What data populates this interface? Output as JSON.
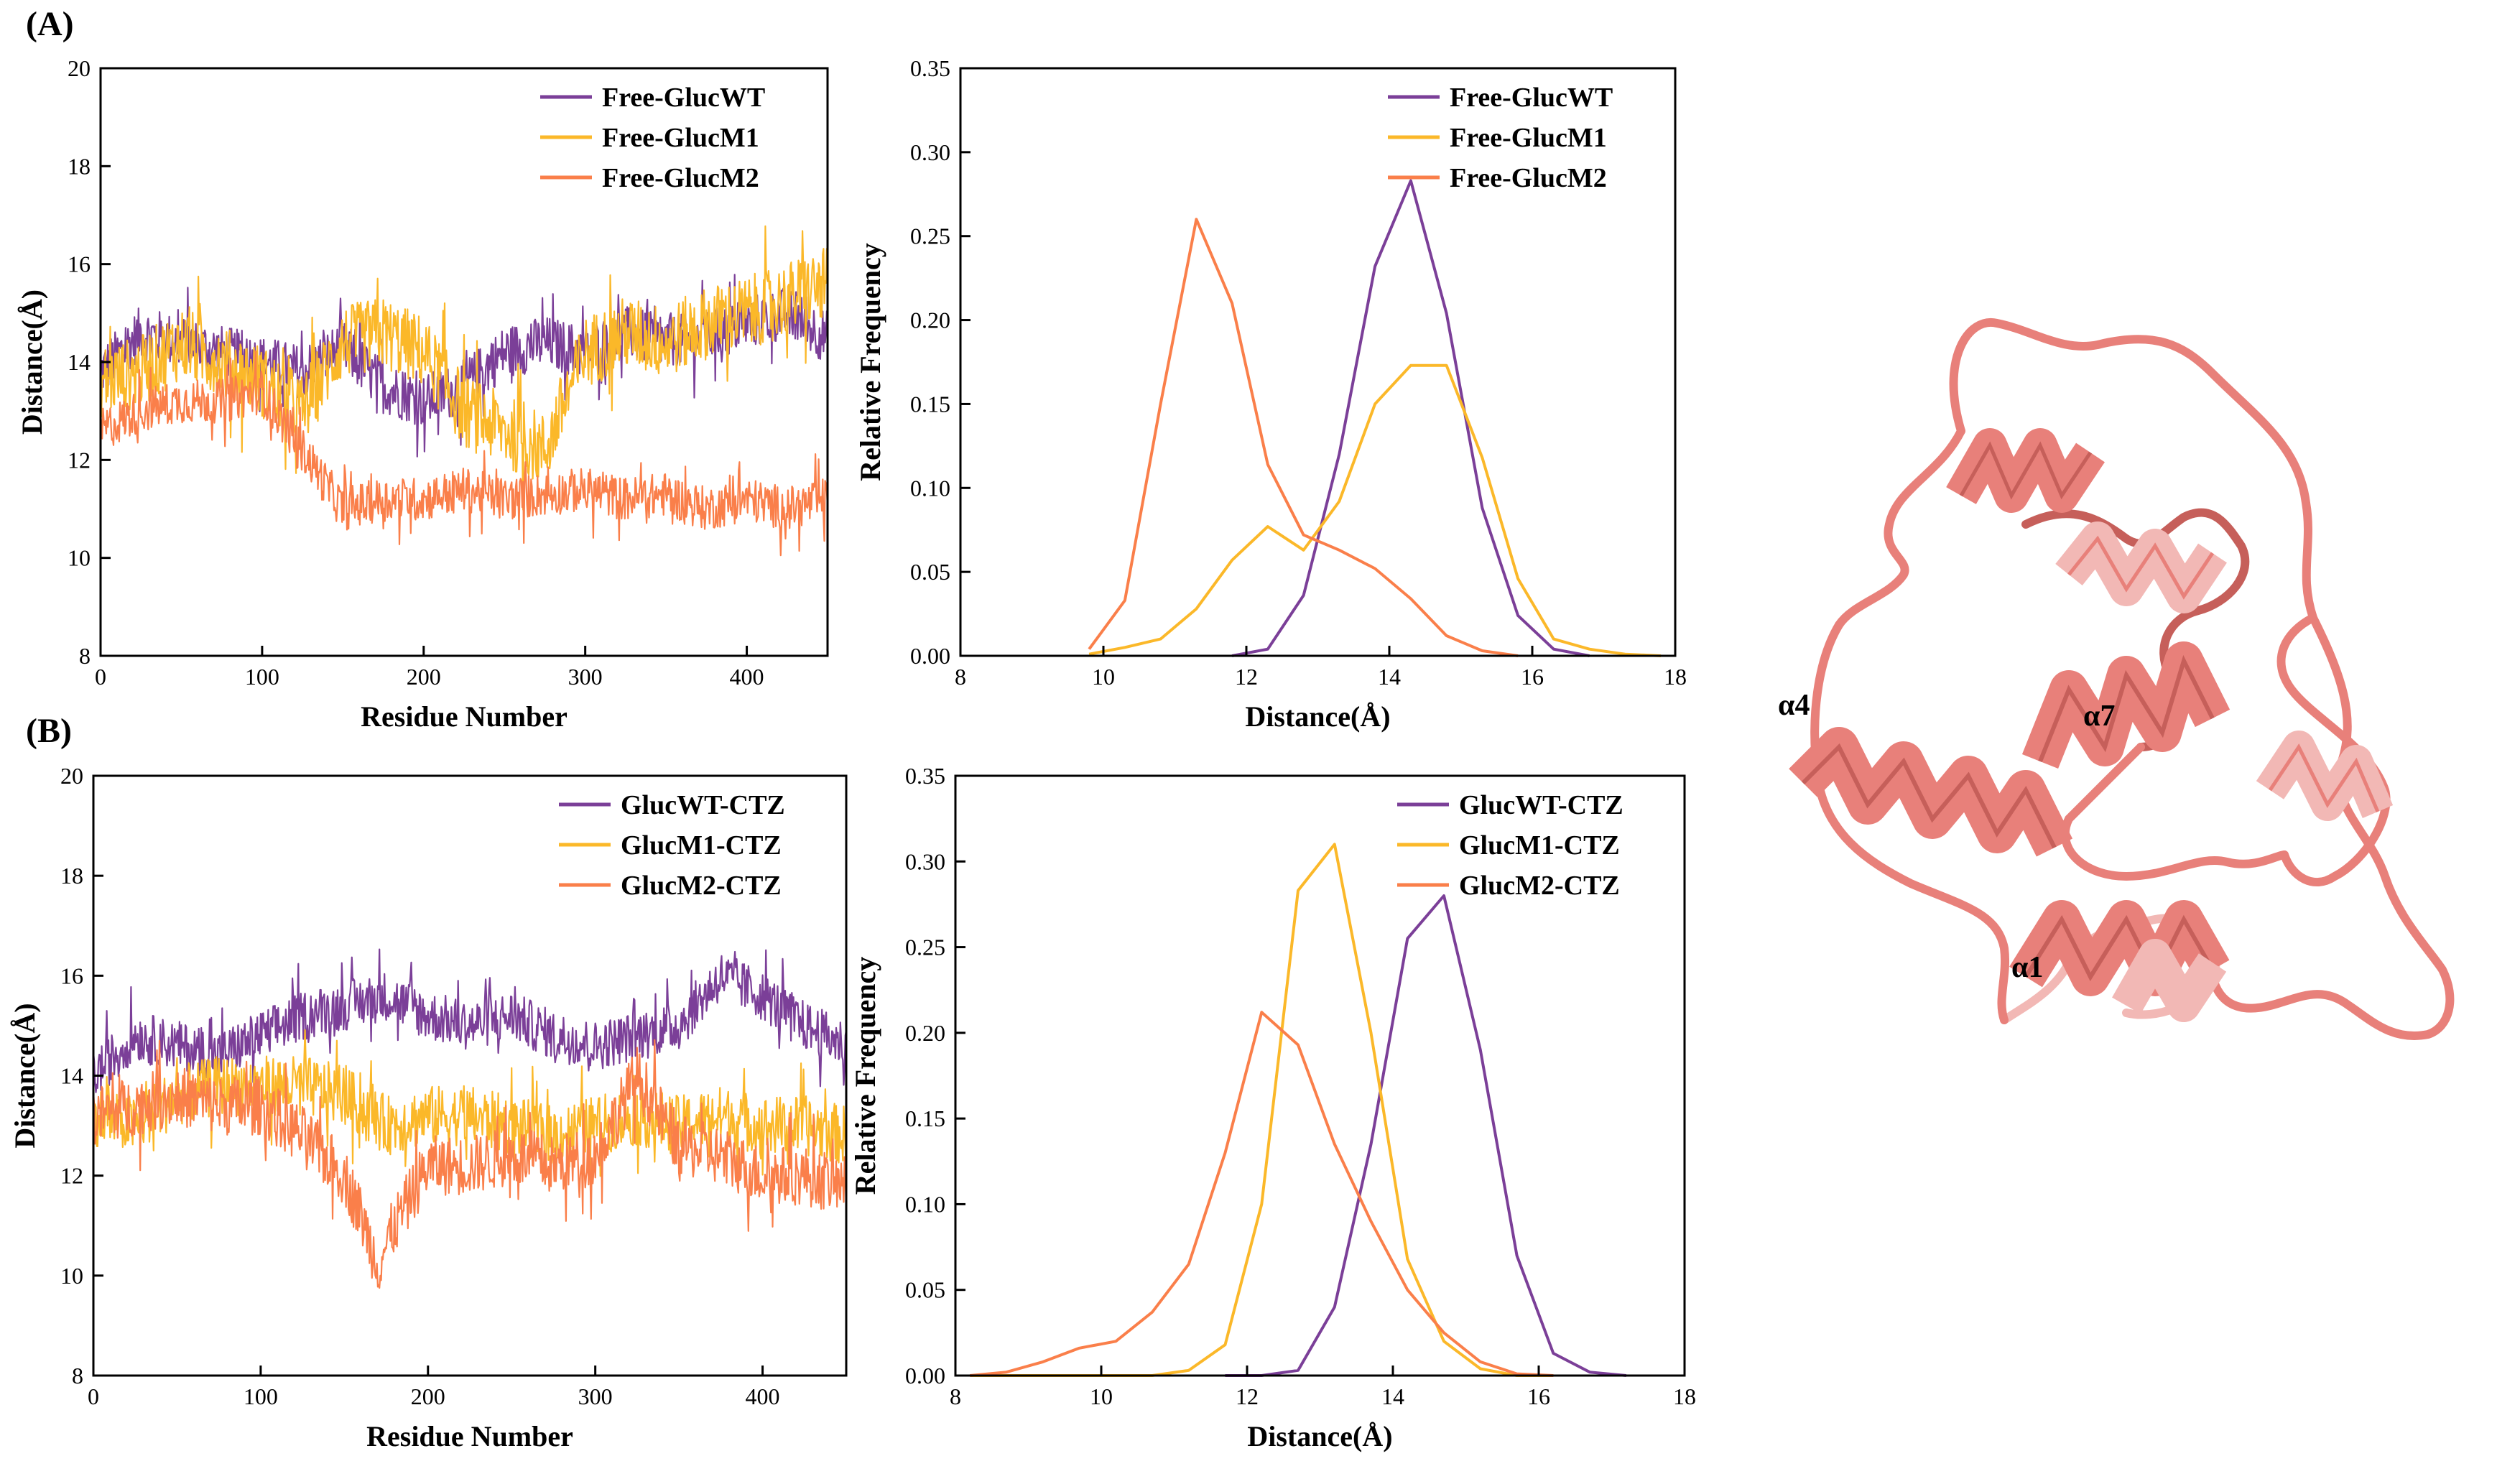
{
  "panel_labels": {
    "A": "(A)",
    "B": "(B)"
  },
  "colors": {
    "wt": "#7B3F98",
    "m1": "#FBB829",
    "m2": "#FA7F4A",
    "ribbon": "#E8807A",
    "ribbon_dark": "#C65F5A",
    "ribbon_light": "#F2B8B5"
  },
  "structure": {
    "labels": {
      "a4": "α4",
      "a7": "α7",
      "a1": "α1"
    }
  },
  "chart_data": [
    {
      "id": "A-trace",
      "type": "line",
      "title": "",
      "xlabel": "Residue Number",
      "ylabel": "Distance(Å)",
      "xlim": [
        0,
        450
      ],
      "ylim": [
        8,
        20
      ],
      "xticks": [
        0,
        100,
        200,
        300,
        400
      ],
      "yticks": [
        8,
        10,
        12,
        14,
        16,
        18,
        20
      ],
      "legend": "top-right",
      "series": [
        {
          "name": "Free-GlucWT",
          "color": "#7B3F98",
          "x": [
            0,
            25,
            50,
            75,
            100,
            125,
            150,
            175,
            200,
            225,
            250,
            275,
            300,
            325,
            350,
            375,
            400,
            425,
            450
          ],
          "y": [
            13.8,
            14.6,
            14.4,
            14.2,
            14.0,
            13.8,
            14.3,
            13.5,
            13.2,
            13.5,
            14.2,
            14.4,
            14.2,
            14.6,
            14.4,
            14.5,
            14.8,
            15.0,
            14.5
          ],
          "noise": 0.55
        },
        {
          "name": "Free-GlucM1",
          "color": "#FBB829",
          "x": [
            0,
            25,
            50,
            75,
            100,
            125,
            150,
            175,
            200,
            225,
            250,
            275,
            300,
            325,
            350,
            375,
            400,
            425,
            450
          ],
          "y": [
            13.6,
            13.8,
            14.4,
            14.0,
            13.6,
            13.0,
            14.4,
            14.6,
            14.2,
            13.0,
            12.6,
            12.2,
            14.2,
            14.6,
            14.4,
            14.8,
            15.0,
            15.3,
            15.6
          ],
          "noise": 0.75
        },
        {
          "name": "Free-GlucM2",
          "color": "#FA7F4A",
          "x": [
            0,
            25,
            50,
            75,
            100,
            125,
            150,
            175,
            200,
            225,
            250,
            275,
            300,
            325,
            350,
            375,
            400,
            425,
            450
          ],
          "y": [
            12.6,
            13.0,
            13.2,
            13.2,
            13.4,
            12.2,
            11.0,
            11.2,
            11.2,
            11.4,
            11.2,
            11.3,
            11.4,
            11.2,
            11.3,
            11.0,
            11.2,
            11.0,
            11.2
          ],
          "noise": 0.45
        }
      ]
    },
    {
      "id": "A-dist",
      "type": "line",
      "title": "",
      "xlabel": "Distance(Å)",
      "ylabel": "Relative Frequency",
      "xlim": [
        8,
        18
      ],
      "ylim": [
        0,
        0.35
      ],
      "xticks": [
        8,
        10,
        12,
        14,
        16,
        18
      ],
      "yticks": [
        0.0,
        0.05,
        0.1,
        0.15,
        0.2,
        0.25,
        0.3,
        0.35
      ],
      "legend": "top-right",
      "series": [
        {
          "name": "Free-GlucWT",
          "color": "#7B3F98",
          "x": [
            11.8,
            12.3,
            12.8,
            13.3,
            13.8,
            14.3,
            14.8,
            15.3,
            15.8,
            16.3,
            16.8
          ],
          "y": [
            0.0,
            0.004,
            0.036,
            0.12,
            0.232,
            0.283,
            0.204,
            0.088,
            0.024,
            0.004,
            0.0
          ]
        },
        {
          "name": "Free-GlucM1",
          "color": "#FBB829",
          "x": [
            9.8,
            10.3,
            10.8,
            11.3,
            11.8,
            12.3,
            12.8,
            13.3,
            13.8,
            14.3,
            14.8,
            15.3,
            15.8,
            16.3,
            16.8,
            17.3,
            17.8
          ],
          "y": [
            0.001,
            0.005,
            0.01,
            0.028,
            0.057,
            0.077,
            0.063,
            0.092,
            0.15,
            0.173,
            0.173,
            0.118,
            0.046,
            0.01,
            0.004,
            0.001,
            0.0
          ]
        },
        {
          "name": "Free-GlucM2",
          "color": "#FA7F4A",
          "x": [
            9.8,
            10.3,
            10.8,
            11.3,
            11.8,
            12.3,
            12.8,
            13.3,
            13.8,
            14.3,
            14.8,
            15.3,
            15.8
          ],
          "y": [
            0.004,
            0.033,
            0.15,
            0.26,
            0.21,
            0.114,
            0.072,
            0.063,
            0.052,
            0.034,
            0.012,
            0.003,
            0.0
          ]
        }
      ]
    },
    {
      "id": "B-trace",
      "type": "line",
      "title": "",
      "xlabel": "Residue Number",
      "ylabel": "Distance(Å)",
      "xlim": [
        0,
        450
      ],
      "ylim": [
        8,
        20
      ],
      "xticks": [
        0,
        100,
        200,
        300,
        400
      ],
      "yticks": [
        8,
        10,
        12,
        14,
        16,
        18,
        20
      ],
      "legend": "top-right",
      "series": [
        {
          "name": "GlucWT-CTZ",
          "color": "#7B3F98",
          "x": [
            0,
            25,
            50,
            75,
            100,
            125,
            150,
            175,
            200,
            225,
            250,
            275,
            300,
            325,
            350,
            375,
            400,
            425,
            450
          ],
          "y": [
            14.0,
            14.8,
            14.6,
            14.4,
            14.8,
            15.2,
            15.4,
            15.6,
            15.2,
            15.0,
            15.2,
            14.8,
            14.6,
            14.8,
            15.0,
            16.0,
            15.6,
            15.0,
            14.6
          ],
          "noise": 0.5
        },
        {
          "name": "GlucM1-CTZ",
          "color": "#FBB829",
          "x": [
            0,
            25,
            50,
            75,
            100,
            125,
            150,
            175,
            200,
            225,
            250,
            275,
            300,
            325,
            350,
            375,
            400,
            425,
            450
          ],
          "y": [
            13.2,
            13.0,
            13.6,
            13.8,
            13.8,
            13.8,
            13.6,
            13.0,
            13.2,
            13.2,
            13.0,
            12.8,
            13.0,
            13.2,
            13.0,
            13.2,
            13.0,
            13.0,
            12.8
          ],
          "noise": 0.6
        },
        {
          "name": "GlucM2-CTZ",
          "color": "#FA7F4A",
          "x": [
            0,
            25,
            50,
            75,
            100,
            125,
            150,
            160,
            170,
            180,
            200,
            225,
            250,
            275,
            300,
            325,
            350,
            375,
            400,
            425,
            450
          ],
          "y": [
            13.2,
            13.4,
            13.6,
            13.4,
            13.4,
            12.8,
            12.0,
            11.2,
            10.2,
            11.0,
            12.2,
            12.2,
            12.4,
            12.2,
            12.4,
            14.0,
            12.6,
            12.4,
            12.0,
            12.0,
            11.8
          ],
          "noise": 0.6
        }
      ]
    },
    {
      "id": "B-dist",
      "type": "line",
      "title": "",
      "xlabel": "Distance(Å)",
      "ylabel": "Relative Frequency",
      "xlim": [
        8,
        18
      ],
      "ylim": [
        0,
        0.35
      ],
      "xticks": [
        8,
        10,
        12,
        14,
        16,
        18
      ],
      "yticks": [
        0.0,
        0.05,
        0.1,
        0.15,
        0.2,
        0.25,
        0.3,
        0.35
      ],
      "legend": "top-right",
      "series": [
        {
          "name": "GlucWT-CTZ",
          "color": "#7B3F98",
          "x": [
            11.7,
            12.2,
            12.7,
            13.2,
            13.7,
            14.2,
            14.7,
            15.2,
            15.7,
            16.2,
            16.7,
            17.2
          ],
          "y": [
            0.0,
            0.0,
            0.003,
            0.04,
            0.135,
            0.255,
            0.28,
            0.19,
            0.07,
            0.013,
            0.002,
            0.0
          ]
        },
        {
          "name": "GlucM1-CTZ",
          "color": "#FBB829",
          "x": [
            8.2,
            10.7,
            11.2,
            11.7,
            12.2,
            12.7,
            13.2,
            13.7,
            14.2,
            14.7,
            15.2,
            15.7,
            16.2
          ],
          "y": [
            0.0,
            0.0,
            0.003,
            0.018,
            0.1,
            0.283,
            0.31,
            0.2,
            0.068,
            0.02,
            0.004,
            0.0,
            0.0
          ]
        },
        {
          "name": "GlucM2-CTZ",
          "color": "#FA7F4A",
          "x": [
            8.2,
            8.7,
            9.2,
            9.7,
            10.2,
            10.7,
            11.2,
            11.7,
            12.2,
            12.7,
            13.2,
            13.7,
            14.2,
            14.7,
            15.2,
            15.7,
            16.2
          ],
          "y": [
            0.0,
            0.002,
            0.008,
            0.016,
            0.02,
            0.037,
            0.065,
            0.13,
            0.212,
            0.193,
            0.135,
            0.09,
            0.05,
            0.025,
            0.008,
            0.001,
            0.0
          ]
        }
      ]
    }
  ]
}
